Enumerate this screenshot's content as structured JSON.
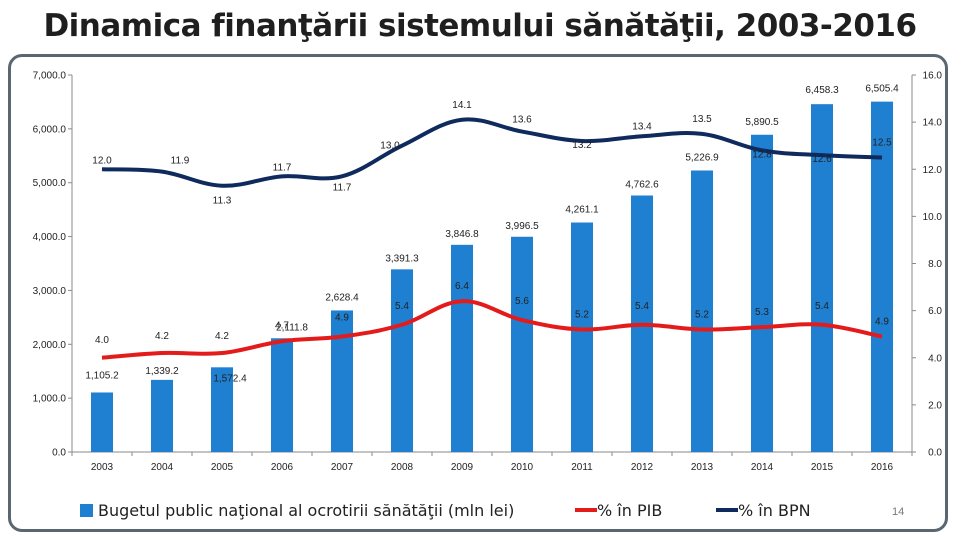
{
  "title": "Dinamica finanţării  sistemului sănătăţii, 2003-2016",
  "page_number": "14",
  "colors": {
    "bars": "#1f7fd1",
    "pib_line": "#e31b1b",
    "bpn_line": "#0f2a5c",
    "frame": "#5b6770"
  },
  "chart_data": {
    "type": "bar",
    "categories": [
      "2003",
      "2004",
      "2005",
      "2006",
      "2007",
      "2008",
      "2009",
      "2010",
      "2011",
      "2012",
      "2013",
      "2014",
      "2015",
      "2016"
    ],
    "left_axis": {
      "min": 0,
      "max": 7000,
      "ticks": [
        "0.0",
        "1,000.0",
        "2,000.0",
        "3,000.0",
        "4,000.0",
        "5,000.0",
        "6,000.0",
        "7,000.0"
      ]
    },
    "right_axis": {
      "min": 0,
      "max": 16,
      "ticks": [
        "0.0",
        "2.0",
        "4.0",
        "6.0",
        "8.0",
        "10.0",
        "12.0",
        "14.0",
        "16.0"
      ]
    },
    "series": [
      {
        "name": "Bugetul public naţional al ocrotirii sănătăţii (mln lei)",
        "type": "bar",
        "axis": "left",
        "values": [
          1105.2,
          1339.2,
          1572.4,
          2111.8,
          2628.4,
          3391.3,
          3846.8,
          3996.5,
          4261.1,
          4762.6,
          5226.9,
          5890.5,
          6458.3,
          6505.4
        ],
        "labels": [
          "1,105.2",
          "1,339.2",
          "1,572.4",
          "2,111.8",
          "2,628.4",
          "3,391.3",
          "3,846.8",
          "3,996.5",
          "4,261.1",
          "4,762.6",
          "5,226.9",
          "5,890.5",
          "6,458.3",
          "6,505.4"
        ]
      },
      {
        "name": "% în PIB",
        "type": "line",
        "axis": "right",
        "values": [
          4.0,
          4.2,
          4.2,
          4.7,
          4.9,
          5.4,
          6.4,
          5.6,
          5.2,
          5.4,
          5.2,
          5.3,
          5.4,
          4.9
        ],
        "labels": [
          "4.0",
          "4.2",
          "4.2",
          "4.7",
          "4.9",
          "5.4",
          "6.4",
          "5.6",
          "5.2",
          "5.4",
          "5.2",
          "5.3",
          "5.4",
          "4.9"
        ]
      },
      {
        "name": "% în BPN",
        "type": "line",
        "axis": "right",
        "values": [
          12.0,
          11.9,
          11.3,
          11.7,
          11.7,
          13.0,
          14.1,
          13.6,
          13.2,
          13.4,
          13.5,
          12.8,
          12.6,
          12.5
        ],
        "labels": [
          "12.0",
          "11.9",
          "11.3",
          "11.7",
          "11.7",
          "13.0",
          "14.1",
          "13.6",
          "13.2",
          "13.4",
          "13.5",
          "12.8",
          "12.6",
          "12.5"
        ]
      }
    ],
    "legend": [
      "Bugetul public naţional al ocrotirii sănătăţii (mln lei)",
      "% în PIB",
      "% în BPN"
    ],
    "legend_position": "bottom"
  }
}
